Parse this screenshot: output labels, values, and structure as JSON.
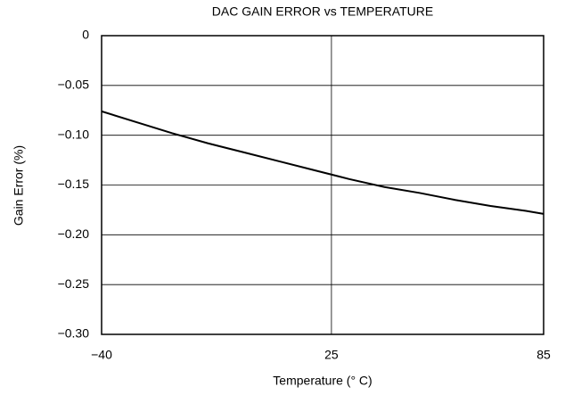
{
  "chart_data": {
    "type": "line",
    "title": "DAC GAIN ERROR vs TEMPERATURE",
    "x_label": "Temperature (° C)",
    "y_label": "Gain Error (%)",
    "x": [
      -40,
      -30,
      -20,
      -10,
      0,
      10,
      20,
      30,
      40,
      50,
      60,
      70,
      80,
      85
    ],
    "series": [
      {
        "name": "Gain Error",
        "color": "#000000",
        "values": [
          -0.076,
          -0.087,
          -0.098,
          -0.108,
          -0.117,
          -0.126,
          -0.135,
          -0.144,
          -0.152,
          -0.158,
          -0.165,
          -0.171,
          -0.176,
          -0.179
        ]
      }
    ],
    "xlim": [
      -40,
      85
    ],
    "xticks": [
      {
        "value": -40,
        "label": "−40"
      },
      25,
      85
    ],
    "ylim": [
      -0.3,
      0
    ],
    "yticks": [
      0,
      {
        "value": -0.05,
        "label": "−0.05"
      },
      {
        "value": -0.1,
        "label": "−0.10"
      },
      {
        "value": -0.15,
        "label": "−0.15"
      },
      {
        "value": -0.2,
        "label": "−0.20"
      },
      {
        "value": -0.25,
        "label": "−0.25"
      },
      {
        "value": -0.3,
        "label": "−0.30"
      }
    ],
    "grid": true
  }
}
